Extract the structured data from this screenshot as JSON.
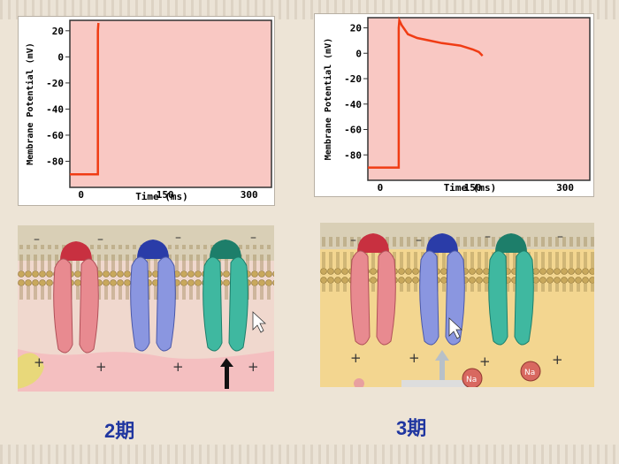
{
  "captions": {
    "left": "2期",
    "right": "3期"
  },
  "panels": [
    {
      "y_axis_label": "Membrane  Potential  (mV)",
      "x_axis_label": "Time (ms)"
    },
    {
      "y_axis_label": "Membrane  Potential  (mV)",
      "x_axis_label": "Time (ms)"
    }
  ],
  "ion_labels": {
    "sodium": "Na"
  },
  "colors": {
    "plot_bg": "#f9c8c3",
    "trace": "#f03c14",
    "sodium_channel": "#e88a90",
    "potassium_channel": "#8a96e0",
    "calcium_channel": "#3fb8a0",
    "membrane": "#c7a860"
  },
  "chart_data": [
    {
      "type": "line",
      "xlabel": "Time (ms)",
      "ylabel": "Membrane  Potential  (mV)",
      "xlim": [
        -20,
        340
      ],
      "ylim": [
        -100,
        28
      ],
      "x_ticks": [
        0,
        150,
        300
      ],
      "y_ticks": [
        20,
        0,
        -20,
        -40,
        -60,
        -80
      ],
      "grid": false,
      "series": [
        {
          "x": [
            -20,
            30,
            30,
            31
          ],
          "y": [
            -90,
            -90,
            20,
            26
          ]
        }
      ]
    },
    {
      "type": "line",
      "xlabel": "Time (ms)",
      "ylabel": "Membrane  Potential  (mV)",
      "xlim": [
        -20,
        340
      ],
      "ylim": [
        -100,
        28
      ],
      "x_ticks": [
        0,
        150,
        300
      ],
      "y_ticks": [
        20,
        0,
        -20,
        -40,
        -60,
        -80
      ],
      "grid": false,
      "series": [
        {
          "x": [
            -20,
            30,
            30,
            31,
            35,
            45,
            60,
            80,
            100,
            130,
            150,
            160,
            166
          ],
          "y": [
            -90,
            -90,
            20,
            26,
            22,
            15,
            12,
            10,
            8,
            6,
            3,
            1,
            -2
          ]
        }
      ]
    }
  ]
}
